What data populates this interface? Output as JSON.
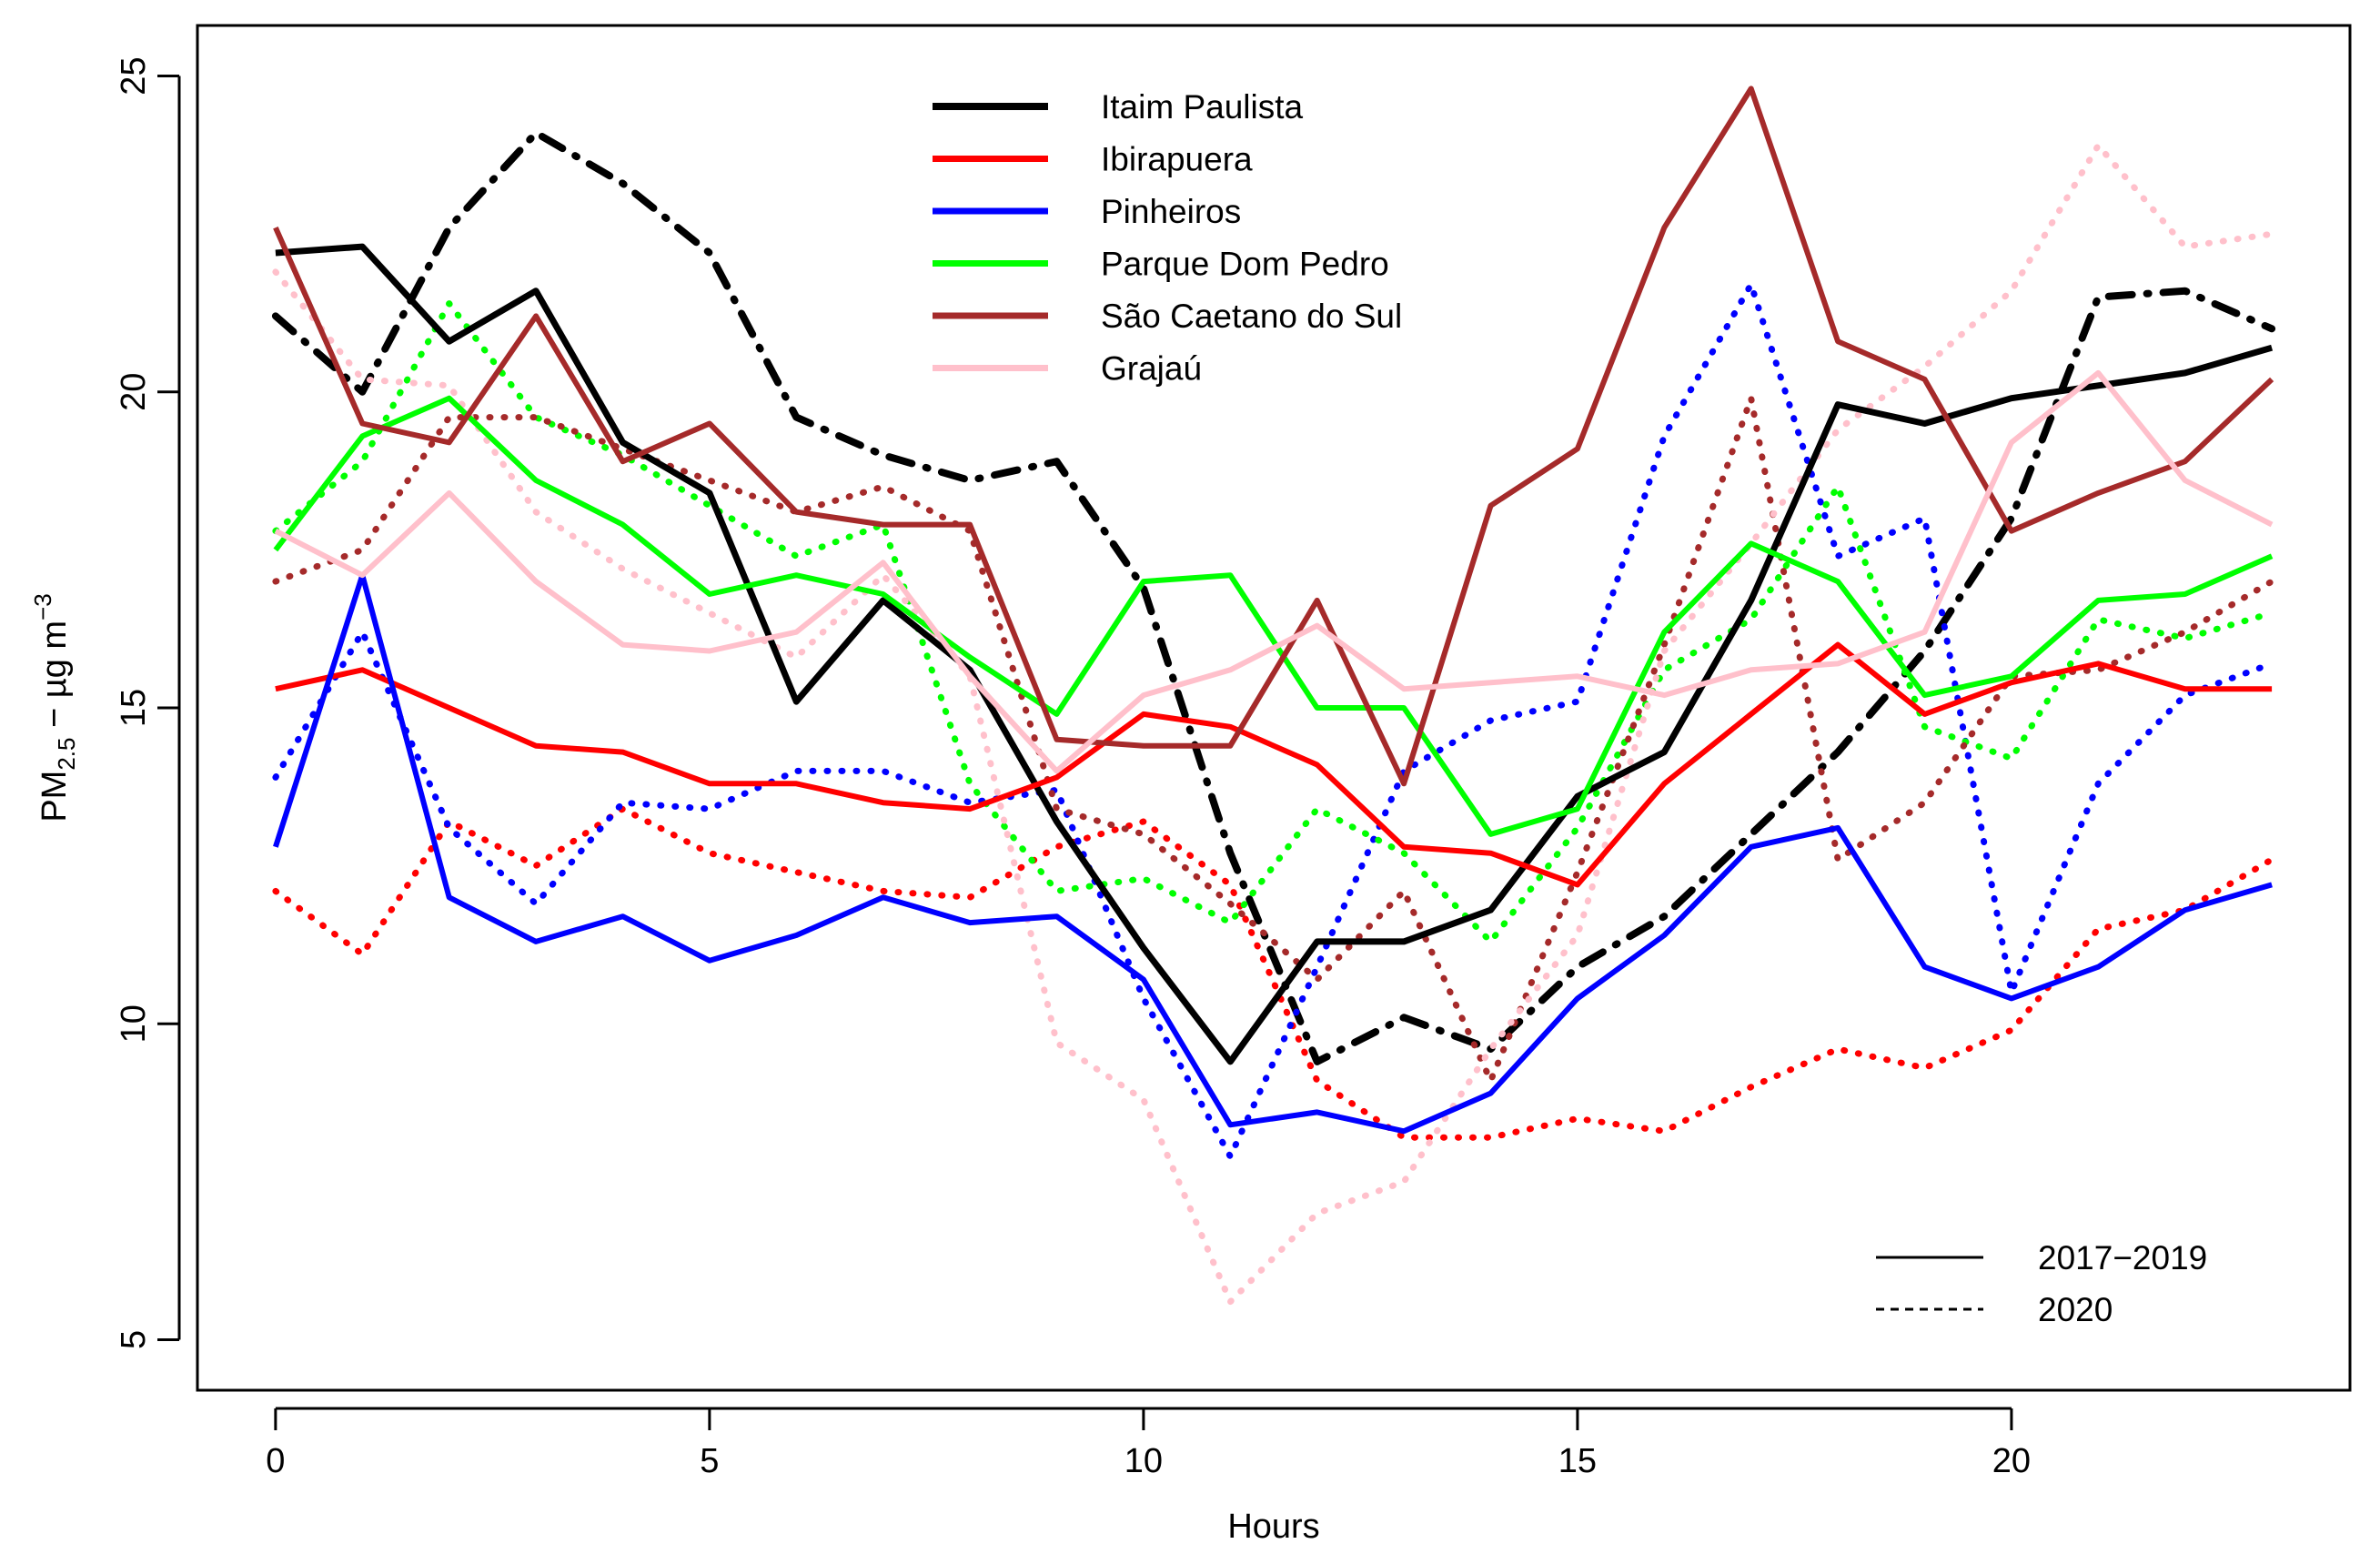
{
  "chart_data": {
    "type": "line",
    "title": "",
    "xlabel": "Hours",
    "ylabel": {
      "main": "PM",
      "sub": "2.5",
      "rest": " − µg m",
      "sup": "−3"
    },
    "xlim": [
      -0.9,
      23.9
    ],
    "ylim": [
      4.2,
      25.8
    ],
    "xticks": [
      0,
      5,
      10,
      15,
      20
    ],
    "yticks": [
      5,
      10,
      15,
      20,
      25
    ],
    "x": [
      0,
      1,
      2,
      3,
      4,
      5,
      6,
      7,
      8,
      9,
      10,
      11,
      12,
      13,
      14,
      15,
      16,
      17,
      18,
      19,
      20,
      21,
      22,
      23
    ],
    "series": [
      {
        "name": "Itaim Paulista",
        "color": "#000000",
        "width": 7,
        "values_2017_2019": [
          22.2,
          22.3,
          20.8,
          21.6,
          19.2,
          18.4,
          15.1,
          16.7,
          15.6,
          13.2,
          11.2,
          9.4,
          11.3,
          11.3,
          11.8,
          13.6,
          14.3,
          16.7,
          19.8,
          19.5,
          19.9,
          20.1,
          20.3,
          20.7
        ],
        "values_2020": [
          21.2,
          20.0,
          22.6,
          24.1,
          23.3,
          22.2,
          19.6,
          19.0,
          18.6,
          18.9,
          16.9,
          12.7,
          9.4,
          10.1,
          9.6,
          10.9,
          11.7,
          13.0,
          14.3,
          15.9,
          18.0,
          21.5,
          21.6,
          21.0
        ]
      },
      {
        "name": "Ibirapuera",
        "color": "#ff0000",
        "width": 6,
        "values_2017_2019": [
          15.3,
          15.6,
          15.0,
          14.4,
          14.3,
          13.8,
          13.8,
          13.5,
          13.4,
          13.9,
          14.9,
          14.7,
          14.1,
          12.8,
          12.7,
          12.2,
          13.8,
          14.9,
          16.0,
          14.9,
          15.4,
          15.7,
          15.3,
          15.3
        ],
        "values_2020": [
          12.1,
          11.1,
          13.2,
          12.5,
          13.4,
          12.7,
          12.4,
          12.1,
          12.0,
          12.8,
          13.2,
          12.2,
          9.1,
          8.2,
          8.2,
          8.5,
          8.3,
          9.0,
          9.6,
          9.3,
          9.9,
          11.5,
          11.8,
          12.6
        ],
        "dash_2020": "dotted"
      },
      {
        "name": "Pinheiros",
        "color": "#0000ff",
        "width": 6,
        "values_2017_2019": [
          12.8,
          17.1,
          12.0,
          11.3,
          11.7,
          11.0,
          11.4,
          12.0,
          11.6,
          11.7,
          10.7,
          8.4,
          8.6,
          8.3,
          8.9,
          10.4,
          11.4,
          12.8,
          13.1,
          10.9,
          10.4,
          10.9,
          11.8,
          12.2
        ],
        "values_2020": [
          13.9,
          16.2,
          13.1,
          11.9,
          13.5,
          13.4,
          14.0,
          14.0,
          13.5,
          13.7,
          10.4,
          7.9,
          10.9,
          14.0,
          14.8,
          15.1,
          19.3,
          21.7,
          17.4,
          18.0,
          10.5,
          13.8,
          15.2,
          15.7
        ],
        "dash_2020": "dotted"
      },
      {
        "name": "Parque Dom Pedro",
        "color": "#00ff00",
        "width": 6,
        "values_2017_2019": [
          17.5,
          19.3,
          19.9,
          18.6,
          17.9,
          16.8,
          17.1,
          16.8,
          15.8,
          14.9,
          17.0,
          17.1,
          15.0,
          15.0,
          13.0,
          13.4,
          16.2,
          17.6,
          17.0,
          15.2,
          15.5,
          16.7,
          16.8,
          17.4
        ],
        "values_2020": [
          17.8,
          18.9,
          21.4,
          19.6,
          19.0,
          18.2,
          17.4,
          17.9,
          13.8,
          12.1,
          12.3,
          11.6,
          13.4,
          12.7,
          11.3,
          13.1,
          15.6,
          16.4,
          18.5,
          14.7,
          14.2,
          16.4,
          16.1,
          16.5
        ],
        "dash_2020": "dotted"
      },
      {
        "name": "São Caetano do Sul",
        "color": "#a52a2a",
        "width": 6,
        "values_2017_2019": [
          22.6,
          19.5,
          19.2,
          21.2,
          18.9,
          19.5,
          18.1,
          17.9,
          17.9,
          14.5,
          14.4,
          14.4,
          16.7,
          13.8,
          18.2,
          19.1,
          22.6,
          24.8,
          20.8,
          20.2,
          17.8,
          18.4,
          18.9,
          20.2
        ],
        "values_2020": [
          17.0,
          17.5,
          19.6,
          19.6,
          19.1,
          18.6,
          18.1,
          18.5,
          17.8,
          13.4,
          13.0,
          11.9,
          10.7,
          12.1,
          9.1,
          12.4,
          16.0,
          19.9,
          12.6,
          13.5,
          15.5,
          15.6,
          16.2,
          17.0
        ],
        "dash_2020": "dotted"
      },
      {
        "name": "Grajaú",
        "color": "#ffc0cb",
        "width": 6,
        "values_2017_2019": [
          17.8,
          17.1,
          18.4,
          17.0,
          16.0,
          15.9,
          16.2,
          17.3,
          15.5,
          14.0,
          15.2,
          15.6,
          16.3,
          15.3,
          15.4,
          15.5,
          15.2,
          15.6,
          15.7,
          16.2,
          19.2,
          20.3,
          18.6,
          17.9
        ],
        "values_2020": [
          21.9,
          20.2,
          20.1,
          18.1,
          17.2,
          16.5,
          15.8,
          17.1,
          15.5,
          9.7,
          8.8,
          5.6,
          7.0,
          7.5,
          9.6,
          11.4,
          15.9,
          17.6,
          19.4,
          20.4,
          21.6,
          23.9,
          22.3,
          22.5
        ],
        "dash_2020": "dotted"
      }
    ],
    "legend_periods": [
      {
        "label": "2017−2019",
        "style": "solid"
      },
      {
        "label": "2020",
        "style": "dashed"
      }
    ],
    "legend_position": "top-center",
    "period_legend_position": "bottom-right",
    "grid": false
  }
}
